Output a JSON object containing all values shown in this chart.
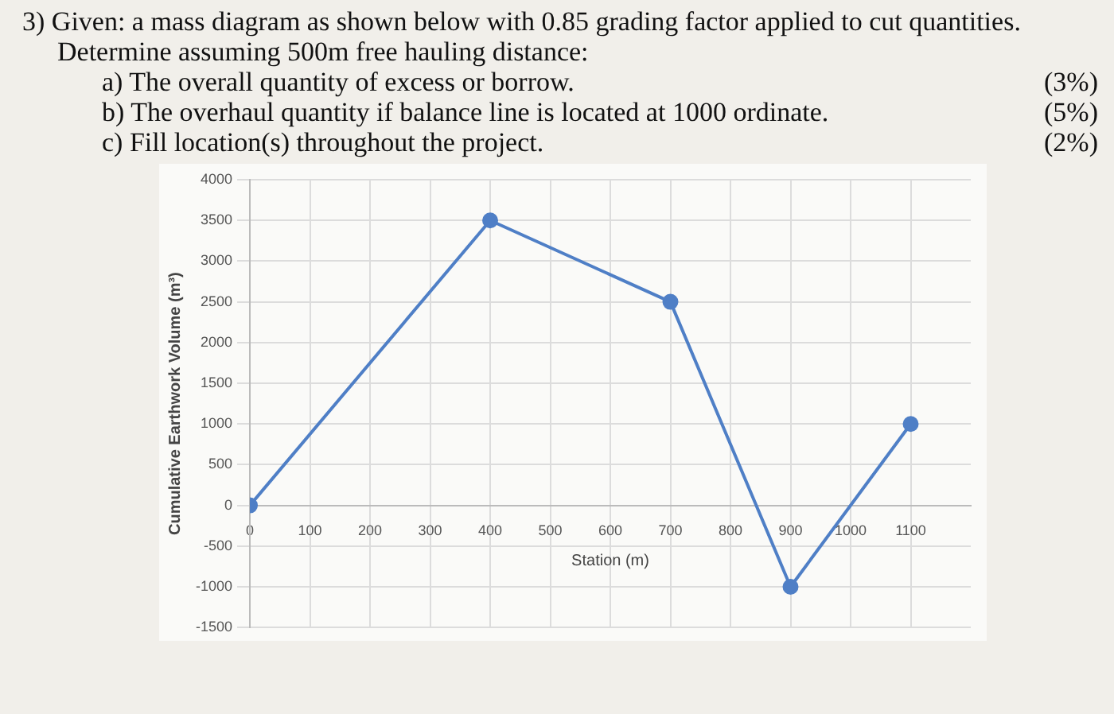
{
  "chart_data": {
    "type": "line",
    "title": "3) Given: a mass diagram as shown below with 0.85 grading factor applied to cut quantities. Determine assuming 500m free hauling distance:",
    "annotations": [
      "a) The overall quantity of excess or borrow.",
      "(3%)",
      "b) The overhaul quantity if balance line is located at 1000 ordinate.",
      "(5%)",
      "c) Fill location(s) throughout the project.",
      "(2%)"
    ],
    "x": [
      0,
      400,
      700,
      900,
      1100
    ],
    "series": [
      {
        "color": "#4f7fc6",
        "values": [
          0,
          3500,
          2500,
          -1000,
          1000
        ]
      }
    ],
    "xlim": [
      0,
      1200
    ],
    "xticks": [
      0,
      100,
      200,
      300,
      400,
      500,
      600,
      700,
      800,
      900,
      1000,
      1100
    ],
    "ylim": [
      -1500,
      4000
    ],
    "yticks": [
      -1500,
      -1000,
      -500,
      0,
      500,
      1000,
      1500,
      2000,
      2500,
      3000,
      3500,
      4000
    ],
    "xlabel": "Station (m)",
    "ylabel": "Cumulative Earthwork Volume (m³)",
    "grid": true,
    "marker": "circle",
    "line_style": "solid",
    "legend": false
  }
}
